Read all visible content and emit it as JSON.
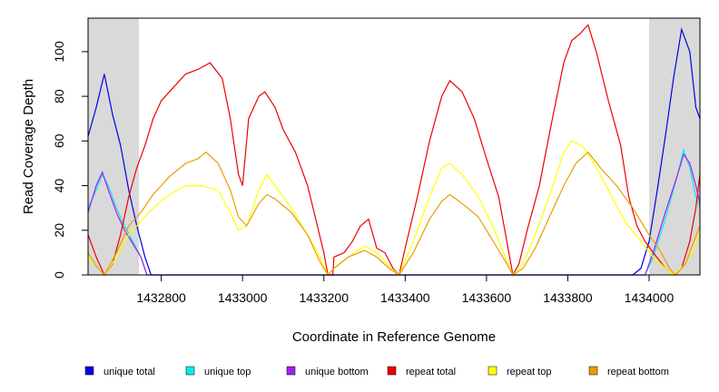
{
  "chart_data": {
    "type": "line",
    "title": "",
    "xlabel": "Coordinate in Reference Genome",
    "ylabel": "Read Coverage Depth",
    "xlim": [
      1432620,
      1434125
    ],
    "ylim": [
      0,
      115
    ],
    "x_ticks": [
      1432800,
      1433000,
      1433200,
      1433400,
      1433600,
      1433800,
      1434000
    ],
    "x_tick_labels": [
      "1432800",
      "1433000",
      "1433200",
      "1433400",
      "1433600",
      "1433800",
      "1434000"
    ],
    "y_ticks": [
      0,
      20,
      40,
      60,
      80,
      100
    ],
    "y_tick_labels": [
      "0",
      "20",
      "40",
      "60",
      "80",
      "100"
    ],
    "grid": false,
    "legend_position": "bottom",
    "shaded_regions": [
      {
        "x0": 1432620,
        "x1": 1432745,
        "color": "#d9d9d9"
      },
      {
        "x0": 1434000,
        "x1": 1434125,
        "color": "#d9d9d9"
      }
    ],
    "series": [
      {
        "name": "unique total",
        "color": "#0000ee",
        "points": [
          [
            1432620,
            62
          ],
          [
            1432640,
            75
          ],
          [
            1432660,
            90
          ],
          [
            1432680,
            72
          ],
          [
            1432700,
            58
          ],
          [
            1432720,
            38
          ],
          [
            1432740,
            22
          ],
          [
            1432760,
            8
          ],
          [
            1432775,
            0
          ],
          [
            1433200,
            0
          ],
          [
            1433500,
            0
          ],
          [
            1433900,
            0
          ],
          [
            1433960,
            0
          ],
          [
            1433980,
            3
          ],
          [
            1434000,
            15
          ],
          [
            1434020,
            38
          ],
          [
            1434040,
            62
          ],
          [
            1434060,
            88
          ],
          [
            1434080,
            110
          ],
          [
            1434100,
            100
          ],
          [
            1434115,
            75
          ],
          [
            1434125,
            70
          ]
        ]
      },
      {
        "name": "unique top",
        "color": "#00eeee",
        "points": [
          [
            1432620,
            30
          ],
          [
            1432640,
            38
          ],
          [
            1432655,
            45
          ],
          [
            1432670,
            40
          ],
          [
            1432690,
            30
          ],
          [
            1432710,
            22
          ],
          [
            1432730,
            15
          ],
          [
            1432750,
            8
          ],
          [
            1432765,
            0
          ],
          [
            1433900,
            0
          ],
          [
            1433990,
            0
          ],
          [
            1434010,
            8
          ],
          [
            1434040,
            25
          ],
          [
            1434070,
            45
          ],
          [
            1434085,
            56
          ],
          [
            1434100,
            48
          ],
          [
            1434115,
            35
          ],
          [
            1434125,
            30
          ]
        ]
      },
      {
        "name": "unique bottom",
        "color": "#a020f0",
        "points": [
          [
            1432620,
            28
          ],
          [
            1432640,
            40
          ],
          [
            1432655,
            46
          ],
          [
            1432670,
            38
          ],
          [
            1432690,
            28
          ],
          [
            1432710,
            20
          ],
          [
            1432730,
            14
          ],
          [
            1432750,
            8
          ],
          [
            1432765,
            0
          ],
          [
            1433900,
            0
          ],
          [
            1433990,
            0
          ],
          [
            1434010,
            10
          ],
          [
            1434040,
            28
          ],
          [
            1434070,
            45
          ],
          [
            1434085,
            54
          ],
          [
            1434100,
            50
          ],
          [
            1434115,
            40
          ],
          [
            1434125,
            32
          ]
        ]
      },
      {
        "name": "repeat total",
        "color": "#ee0000",
        "points": [
          [
            1432620,
            18
          ],
          [
            1432640,
            8
          ],
          [
            1432660,
            0
          ],
          [
            1432680,
            5
          ],
          [
            1432700,
            18
          ],
          [
            1432720,
            35
          ],
          [
            1432740,
            48
          ],
          [
            1432760,
            58
          ],
          [
            1432780,
            70
          ],
          [
            1432800,
            78
          ],
          [
            1432830,
            84
          ],
          [
            1432860,
            90
          ],
          [
            1432890,
            92
          ],
          [
            1432920,
            95
          ],
          [
            1432950,
            88
          ],
          [
            1432970,
            70
          ],
          [
            1432990,
            45
          ],
          [
            1433000,
            40
          ],
          [
            1433015,
            70
          ],
          [
            1433040,
            80
          ],
          [
            1433055,
            82
          ],
          [
            1433080,
            75
          ],
          [
            1433100,
            65
          ],
          [
            1433130,
            55
          ],
          [
            1433160,
            40
          ],
          [
            1433180,
            25
          ],
          [
            1433200,
            10
          ],
          [
            1433210,
            0
          ],
          [
            1433222,
            0
          ],
          [
            1433225,
            8
          ],
          [
            1433250,
            10
          ],
          [
            1433270,
            15
          ],
          [
            1433290,
            22
          ],
          [
            1433310,
            25
          ],
          [
            1433330,
            12
          ],
          [
            1433350,
            10
          ],
          [
            1433370,
            3
          ],
          [
            1433385,
            0
          ],
          [
            1433400,
            12
          ],
          [
            1433430,
            35
          ],
          [
            1433460,
            60
          ],
          [
            1433490,
            80
          ],
          [
            1433510,
            87
          ],
          [
            1433540,
            82
          ],
          [
            1433570,
            70
          ],
          [
            1433600,
            52
          ],
          [
            1433630,
            35
          ],
          [
            1433650,
            15
          ],
          [
            1433665,
            0
          ],
          [
            1433680,
            5
          ],
          [
            1433700,
            20
          ],
          [
            1433730,
            40
          ],
          [
            1433760,
            68
          ],
          [
            1433790,
            95
          ],
          [
            1433810,
            105
          ],
          [
            1433830,
            108
          ],
          [
            1433850,
            112
          ],
          [
            1433870,
            100
          ],
          [
            1433900,
            78
          ],
          [
            1433930,
            58
          ],
          [
            1433950,
            35
          ],
          [
            1433970,
            22
          ],
          [
            1433990,
            15
          ],
          [
            1434010,
            10
          ],
          [
            1434040,
            3
          ],
          [
            1434060,
            0
          ],
          [
            1434080,
            3
          ],
          [
            1434100,
            15
          ],
          [
            1434115,
            30
          ],
          [
            1434125,
            45
          ]
        ]
      },
      {
        "name": "repeat top",
        "color": "#ffff00",
        "points": [
          [
            1432620,
            8
          ],
          [
            1432640,
            4
          ],
          [
            1432660,
            0
          ],
          [
            1432690,
            8
          ],
          [
            1432720,
            18
          ],
          [
            1432750,
            24
          ],
          [
            1432780,
            30
          ],
          [
            1432820,
            36
          ],
          [
            1432860,
            40
          ],
          [
            1432900,
            40
          ],
          [
            1432940,
            38
          ],
          [
            1432970,
            28
          ],
          [
            1432990,
            20
          ],
          [
            1433010,
            22
          ],
          [
            1433040,
            38
          ],
          [
            1433060,
            45
          ],
          [
            1433080,
            40
          ],
          [
            1433120,
            30
          ],
          [
            1433160,
            18
          ],
          [
            1433190,
            8
          ],
          [
            1433210,
            0
          ],
          [
            1433225,
            3
          ],
          [
            1433260,
            8
          ],
          [
            1433300,
            13
          ],
          [
            1433330,
            10
          ],
          [
            1433360,
            4
          ],
          [
            1433385,
            0
          ],
          [
            1433420,
            15
          ],
          [
            1433460,
            35
          ],
          [
            1433490,
            48
          ],
          [
            1433510,
            50
          ],
          [
            1433540,
            45
          ],
          [
            1433580,
            35
          ],
          [
            1433620,
            20
          ],
          [
            1433650,
            6
          ],
          [
            1433665,
            0
          ],
          [
            1433690,
            5
          ],
          [
            1433720,
            18
          ],
          [
            1433760,
            38
          ],
          [
            1433790,
            55
          ],
          [
            1433810,
            60
          ],
          [
            1433840,
            57
          ],
          [
            1433870,
            48
          ],
          [
            1433900,
            38
          ],
          [
            1433940,
            24
          ],
          [
            1433980,
            15
          ],
          [
            1434010,
            8
          ],
          [
            1434040,
            3
          ],
          [
            1434060,
            0
          ],
          [
            1434090,
            5
          ],
          [
            1434110,
            12
          ],
          [
            1434125,
            20
          ]
        ]
      },
      {
        "name": "repeat bottom",
        "color": "#e69f00",
        "points": [
          [
            1432620,
            10
          ],
          [
            1432640,
            4
          ],
          [
            1432660,
            0
          ],
          [
            1432690,
            10
          ],
          [
            1432720,
            22
          ],
          [
            1432750,
            28
          ],
          [
            1432780,
            36
          ],
          [
            1432820,
            44
          ],
          [
            1432860,
            50
          ],
          [
            1432890,
            52
          ],
          [
            1432910,
            55
          ],
          [
            1432940,
            50
          ],
          [
            1432970,
            38
          ],
          [
            1432990,
            26
          ],
          [
            1433010,
            22
          ],
          [
            1433040,
            32
          ],
          [
            1433060,
            36
          ],
          [
            1433080,
            34
          ],
          [
            1433120,
            28
          ],
          [
            1433160,
            18
          ],
          [
            1433190,
            6
          ],
          [
            1433210,
            0
          ],
          [
            1433225,
            3
          ],
          [
            1433260,
            8
          ],
          [
            1433300,
            11
          ],
          [
            1433330,
            8
          ],
          [
            1433360,
            3
          ],
          [
            1433385,
            0
          ],
          [
            1433420,
            10
          ],
          [
            1433460,
            25
          ],
          [
            1433490,
            33
          ],
          [
            1433510,
            36
          ],
          [
            1433540,
            32
          ],
          [
            1433580,
            26
          ],
          [
            1433620,
            14
          ],
          [
            1433650,
            5
          ],
          [
            1433665,
            0
          ],
          [
            1433690,
            3
          ],
          [
            1433720,
            12
          ],
          [
            1433760,
            28
          ],
          [
            1433790,
            40
          ],
          [
            1433820,
            50
          ],
          [
            1433850,
            55
          ],
          [
            1433880,
            48
          ],
          [
            1433920,
            40
          ],
          [
            1433960,
            30
          ],
          [
            1434000,
            18
          ],
          [
            1434030,
            10
          ],
          [
            1434050,
            3
          ],
          [
            1434065,
            0
          ],
          [
            1434090,
            5
          ],
          [
            1434110,
            15
          ],
          [
            1434125,
            22
          ]
        ]
      }
    ]
  }
}
